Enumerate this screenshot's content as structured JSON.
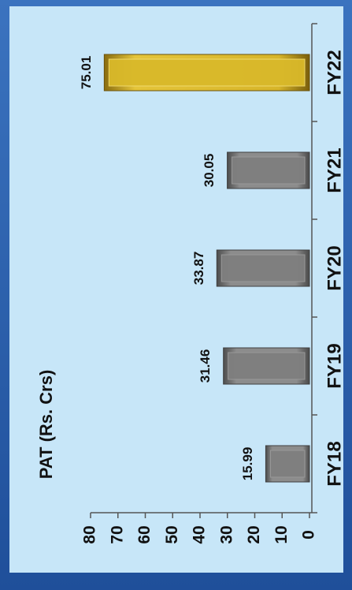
{
  "chart_data": {
    "type": "bar",
    "orientation": "horizontal-rotated",
    "title": "PAT (Rs. Crs)",
    "categories": [
      "FY18",
      "FY19",
      "FY20",
      "FY21",
      "FY22"
    ],
    "values": [
      15.99,
      31.46,
      33.87,
      30.05,
      75.01
    ],
    "value_labels": [
      "15.99",
      "31.46",
      "33.87",
      "30.05",
      "75.01"
    ],
    "ylim": [
      0,
      80
    ],
    "yticks": [
      "0",
      "10",
      "20",
      "30",
      "40",
      "50",
      "60",
      "70",
      "80"
    ],
    "xlabel": "",
    "ylabel": "",
    "grid": false,
    "colors": {
      "default_bar": "#7f7f7f",
      "highlight_bar": "#d9b92a",
      "highlight_category": "FY22"
    }
  }
}
